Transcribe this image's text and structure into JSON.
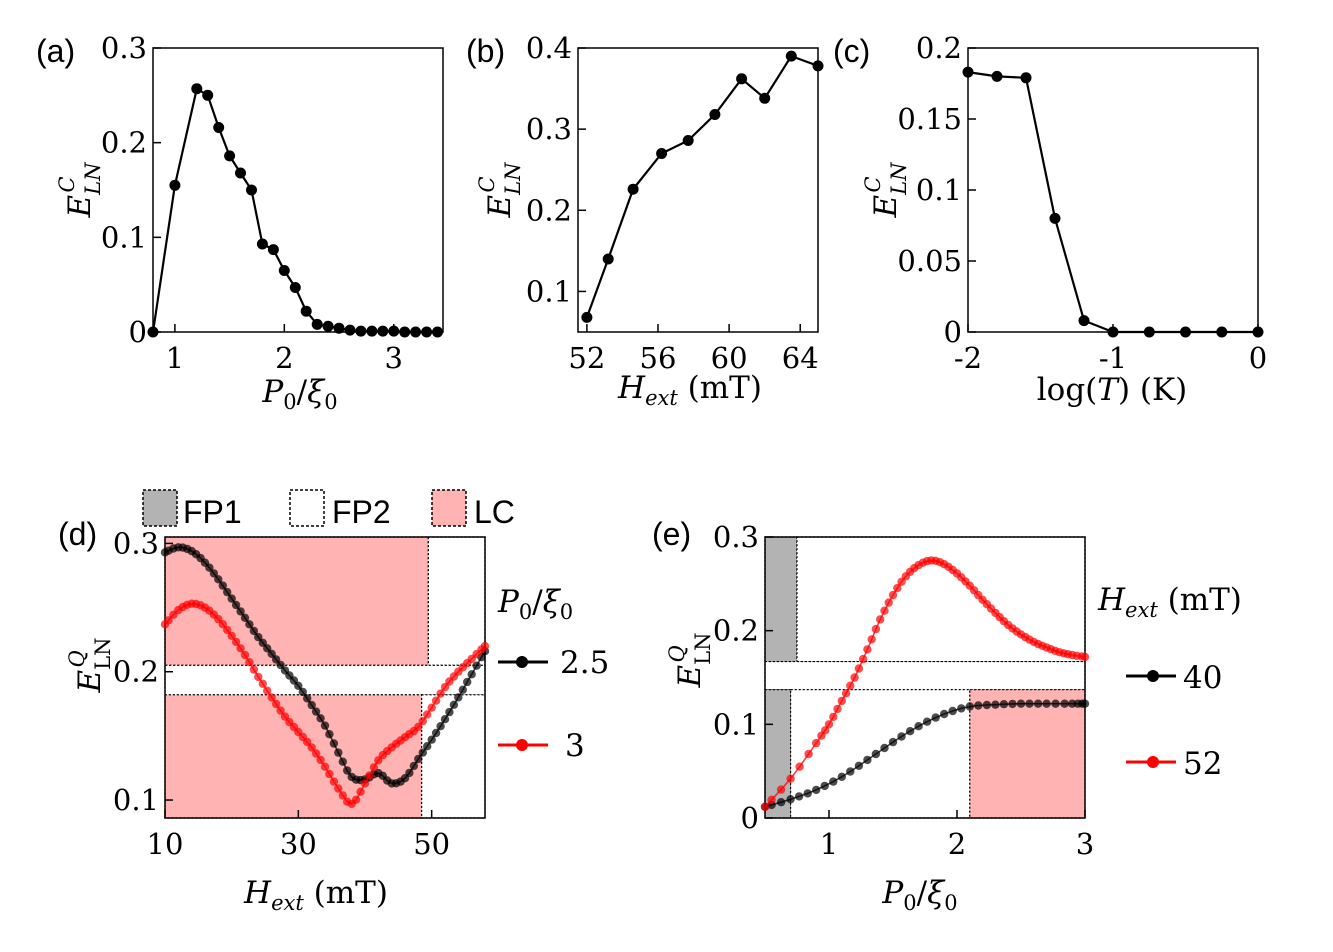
{
  "chart_data": [
    {
      "panel": "(a)",
      "type": "line",
      "xlabel": "P0/ξ0",
      "ylabel": "E^C_LN",
      "xlim": [
        0.8,
        3.45
      ],
      "ylim": [
        0,
        0.3
      ],
      "xticks": [
        1,
        2,
        3
      ],
      "xtick_labels": [
        "1",
        "2",
        "3"
      ],
      "yticks": [
        0,
        0.1,
        0.2,
        0.3
      ],
      "ytick_labels": [
        "0",
        "0.1",
        "0.2",
        "0.3"
      ],
      "series": [
        {
          "name": "E_LN^C",
          "color": "#000000",
          "x": [
            0.8,
            1.0,
            1.2,
            1.3,
            1.4,
            1.5,
            1.6,
            1.7,
            1.8,
            1.9,
            2.0,
            2.1,
            2.2,
            2.3,
            2.4,
            2.5,
            2.6,
            2.7,
            2.8,
            2.9,
            3.0,
            3.1,
            3.2,
            3.3,
            3.4
          ],
          "y": [
            0,
            0.155,
            0.257,
            0.25,
            0.216,
            0.186,
            0.168,
            0.15,
            0.093,
            0.087,
            0.065,
            0.047,
            0.022,
            0.008,
            0.006,
            0.004,
            0.002,
            0.001,
            0.001,
            0.001,
            0.001,
            0,
            0,
            0,
            0
          ]
        }
      ]
    },
    {
      "panel": "(b)",
      "type": "line",
      "xlabel": "H_ext (mT)",
      "ylabel": "E^C_LN",
      "xlim": [
        51.5,
        65
      ],
      "ylim": [
        0.05,
        0.4
      ],
      "xticks": [
        52,
        56,
        60,
        64
      ],
      "xtick_labels": [
        "52",
        "56",
        "60",
        "64"
      ],
      "yticks": [
        0.1,
        0.2,
        0.3,
        0.4
      ],
      "ytick_labels": [
        "0.1",
        "0.2",
        "0.3",
        "0.4"
      ],
      "series": [
        {
          "name": "E_LN^C",
          "color": "#000000",
          "x": [
            52,
            53.2,
            54.6,
            56.2,
            57.7,
            59.2,
            60.7,
            62.0,
            63.5,
            65
          ],
          "y": [
            0.068,
            0.14,
            0.226,
            0.27,
            0.286,
            0.318,
            0.362,
            0.338,
            0.39,
            0.378
          ]
        }
      ]
    },
    {
      "panel": "(c)",
      "type": "line",
      "xlabel": "log(T)  (K)",
      "ylabel": "E^C_LN",
      "xlim": [
        -2,
        0
      ],
      "ylim": [
        0,
        0.2
      ],
      "xticks": [
        -2,
        -1,
        0
      ],
      "xtick_labels": [
        "-2",
        "-1",
        "0"
      ],
      "yticks": [
        0,
        0.05,
        0.1,
        0.15,
        0.2
      ],
      "ytick_labels": [
        "0",
        "0.05",
        "0.1",
        "0.15",
        "0.2"
      ],
      "series": [
        {
          "name": "E_LN^C",
          "color": "#000000",
          "x": [
            -2,
            -1.8,
            -1.6,
            -1.4,
            -1.2,
            -1.0,
            -0.75,
            -0.5,
            -0.25,
            0
          ],
          "y": [
            0.183,
            0.18,
            0.179,
            0.08,
            0.008,
            0,
            0,
            0,
            0,
            0
          ]
        }
      ]
    },
    {
      "panel": "(d)",
      "type": "line",
      "xlabel": "H_ext (mT)",
      "ylabel": "E^Q_LN",
      "xlim": [
        10,
        58
      ],
      "ylim": [
        0.086,
        0.305
      ],
      "xticks": [
        10,
        30,
        50
      ],
      "xtick_labels": [
        "10",
        "30",
        "50"
      ],
      "yticks": [
        0.1,
        0.2,
        0.3
      ],
      "ytick_labels": [
        "0.1",
        "0.2",
        "0.3"
      ],
      "legend": {
        "title": "P0/ξ0",
        "placement": "right",
        "entries": [
          {
            "label": "2.5",
            "color": "#000000"
          },
          {
            "label": "3",
            "color": "#ff0000"
          }
        ]
      },
      "phase_legend": [
        "FP1",
        "FP2",
        "LC"
      ],
      "regions": [
        {
          "phase": "LC",
          "curve": "2.5",
          "x_range": [
            10,
            49.5
          ],
          "y_range": [
            0.205,
            0.305
          ]
        },
        {
          "phase": "FP2",
          "curve": "2.5",
          "x_range": [
            49.5,
            58
          ],
          "y_range": [
            0.205,
            0.305
          ]
        },
        {
          "phase": "FP2",
          "curve": "3",
          "x_range": [
            10,
            58
          ],
          "y_range": [
            0.182,
            0.205
          ]
        },
        {
          "phase": "LC",
          "curve": "3",
          "x_range": [
            10,
            48.5
          ],
          "y_range": [
            0.086,
            0.182
          ]
        },
        {
          "phase": "FP2",
          "curve": "3",
          "x_range": [
            48.5,
            58
          ],
          "y_range": [
            0.086,
            0.182
          ]
        }
      ],
      "series": [
        {
          "name": "2.5",
          "color": "#000000",
          "x": [
            10,
            12,
            14,
            16,
            18,
            20,
            22,
            24,
            26,
            28,
            30,
            32,
            34,
            36,
            38,
            40,
            42,
            44,
            46,
            48,
            50,
            52,
            54,
            56,
            58
          ],
          "y": [
            0.293,
            0.297,
            0.294,
            0.285,
            0.272,
            0.257,
            0.242,
            0.227,
            0.214,
            0.201,
            0.189,
            0.174,
            0.158,
            0.137,
            0.118,
            0.116,
            0.121,
            0.113,
            0.117,
            0.132,
            0.147,
            0.163,
            0.18,
            0.198,
            0.216
          ]
        },
        {
          "name": "3",
          "color": "#ff0000",
          "x": [
            10,
            12,
            14,
            16,
            18,
            20,
            22,
            24,
            26,
            28,
            30,
            32,
            34,
            36,
            38,
            40,
            42,
            44,
            46,
            48,
            50,
            52,
            54,
            56,
            58
          ],
          "y": [
            0.237,
            0.248,
            0.253,
            0.25,
            0.241,
            0.228,
            0.213,
            0.196,
            0.18,
            0.165,
            0.153,
            0.141,
            0.126,
            0.109,
            0.097,
            0.113,
            0.131,
            0.141,
            0.149,
            0.157,
            0.172,
            0.188,
            0.2,
            0.21,
            0.22
          ]
        }
      ]
    },
    {
      "panel": "(e)",
      "type": "line",
      "xlabel": "P0/ξ0",
      "ylabel": "E^Q_LN",
      "xlim": [
        0.5,
        3
      ],
      "ylim": [
        0,
        0.3
      ],
      "xticks": [
        1,
        2,
        3
      ],
      "xtick_labels": [
        "1",
        "2",
        "3"
      ],
      "yticks": [
        0,
        0.1,
        0.2,
        0.3
      ],
      "ytick_labels": [
        "0",
        "0.1",
        "0.2",
        "0.3"
      ],
      "legend": {
        "title": "H_ext (mT)",
        "placement": "right",
        "entries": [
          {
            "label": "40",
            "color": "#000000"
          },
          {
            "label": "52",
            "color": "#ff0000"
          }
        ]
      },
      "regions": [
        {
          "phase": "FP1",
          "curve": "52",
          "x_range": [
            0.5,
            0.75
          ],
          "y_range": [
            0.167,
            0.3
          ]
        },
        {
          "phase": "FP2",
          "curve": "52",
          "x_range": [
            0.75,
            3
          ],
          "y_range": [
            0.167,
            0.3
          ]
        },
        {
          "phase": "FP2",
          "curve": "both",
          "x_range": [
            0.5,
            3
          ],
          "y_range": [
            0.137,
            0.167
          ]
        },
        {
          "phase": "FP1",
          "curve": "40",
          "x_range": [
            0.5,
            0.7
          ],
          "y_range": [
            0,
            0.137
          ]
        },
        {
          "phase": "FP2",
          "curve": "40",
          "x_range": [
            0.7,
            2.1
          ],
          "y_range": [
            0,
            0.137
          ]
        },
        {
          "phase": "LC",
          "curve": "40",
          "x_range": [
            2.1,
            3
          ],
          "y_range": [
            0,
            0.137
          ]
        }
      ],
      "series": [
        {
          "name": "40",
          "color": "#000000",
          "x": [
            0.5,
            0.7,
            0.9,
            1.1,
            1.3,
            1.5,
            1.7,
            1.9,
            2.1,
            2.3,
            2.5,
            2.7,
            2.9,
            3.0
          ],
          "y": [
            0.012,
            0.02,
            0.03,
            0.044,
            0.062,
            0.081,
            0.098,
            0.111,
            0.119,
            0.121,
            0.122,
            0.122,
            0.122,
            0.122
          ]
        },
        {
          "name": "52",
          "color": "#ff0000",
          "x": [
            0.5,
            0.7,
            0.9,
            1.0,
            1.1,
            1.2,
            1.3,
            1.4,
            1.5,
            1.6,
            1.7,
            1.8,
            1.9,
            2.0,
            2.1,
            2.2,
            2.3,
            2.4,
            2.5,
            2.6,
            2.7,
            2.8,
            2.9,
            3.0
          ],
          "y": [
            0.012,
            0.042,
            0.08,
            0.1,
            0.125,
            0.15,
            0.18,
            0.212,
            0.238,
            0.258,
            0.27,
            0.275,
            0.271,
            0.261,
            0.248,
            0.233,
            0.219,
            0.206,
            0.196,
            0.188,
            0.182,
            0.177,
            0.174,
            0.172
          ]
        }
      ]
    }
  ],
  "colors": {
    "fp1": "#b3b3b3",
    "lc": "#ffb3b3",
    "black_marker": "#000000",
    "red_marker": "#ff0000"
  }
}
